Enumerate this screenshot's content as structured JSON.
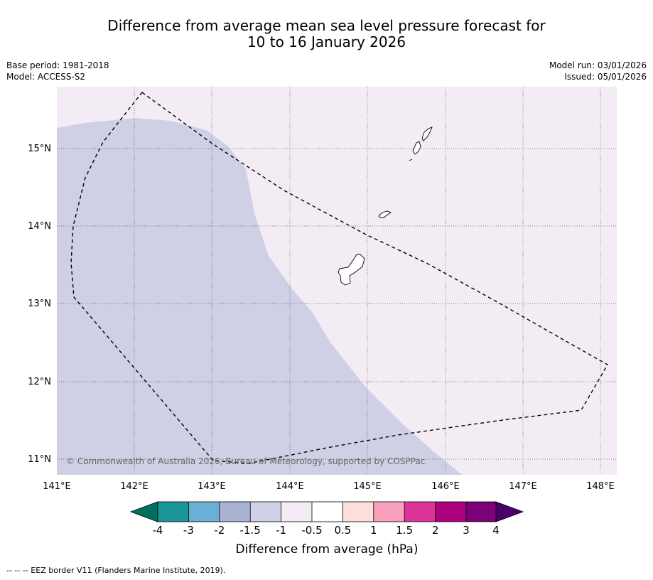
{
  "title": {
    "line1": "Difference from average mean sea level pressure forecast for",
    "line2": "10 to 16 January 2026"
  },
  "meta_left": {
    "base_period": "Base period: 1981-2018",
    "model": "Model: ACCESS-S2"
  },
  "meta_right": {
    "model_run": "Model run: 03/01/2026",
    "issued": "Issued: 05/01/2026"
  },
  "map": {
    "lat_labels": [
      "15°N",
      "14°N",
      "13°N",
      "12°N",
      "11°N"
    ],
    "lon_labels": [
      "141°E",
      "142°E",
      "143°E",
      "144°E",
      "145°E",
      "146°E",
      "147°E",
      "148°E"
    ],
    "background_color": "#f4ecf5",
    "anomaly_color": "#cfcfe5",
    "copyright": "© Commonwealth of Australia 2026, Bureau of Meteorology, supported by COSPPac"
  },
  "colorbar": {
    "title": "Difference from average (hPa)",
    "labels": [
      "-4",
      "-3",
      "-2",
      "-1.5",
      "-1",
      "-0.5",
      "0.5",
      "1",
      "1.5",
      "2",
      "3",
      "4"
    ],
    "colors": [
      "#007060",
      "#1b9696",
      "#6baed6",
      "#a8b4d2",
      "#cfcfe5",
      "#f4ecf5",
      "#ffffff",
      "#fde0de",
      "#f8a0bc",
      "#dd3497",
      "#ae017e",
      "#7a0177",
      "#49006a"
    ]
  },
  "footer": "--  --  -- EEZ border V11 (Flanders Marine Institute, 2019)."
}
